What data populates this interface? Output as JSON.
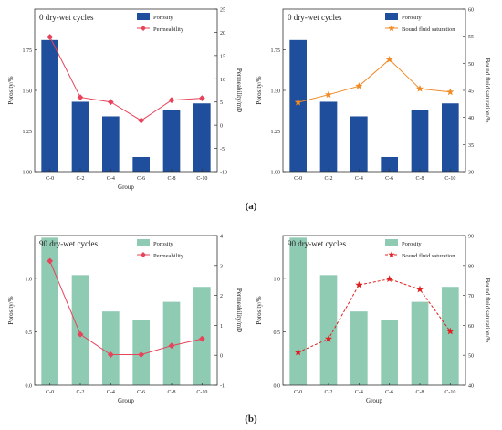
{
  "panel_labels": [
    "(a)",
    "(b)"
  ],
  "chart_data": [
    {
      "type": "bar+line",
      "title": "0 dry-wet cycles",
      "xlabel": "Group",
      "ylabel_left": "Porosity/%",
      "ylabel_right": "Permeability/mD",
      "categories": [
        "C-0",
        "C-2",
        "C-4",
        "C-6",
        "C-8",
        "C-10"
      ],
      "ylim_left": [
        1.0,
        2.0
      ],
      "yticks_left": [
        "1.00",
        "1.25",
        "1.50",
        "1.75"
      ],
      "ylim_right": [
        -10,
        25
      ],
      "yticks_right": [
        "-10",
        "-5",
        "0",
        "5",
        "10",
        "15",
        "20",
        "25"
      ],
      "bar_series": {
        "name": "Porosity",
        "values": [
          1.81,
          1.43,
          1.34,
          1.09,
          1.38,
          1.42
        ],
        "color": "#1f4e9c"
      },
      "line_series": {
        "name": "Permeability",
        "values": [
          19.0,
          6.0,
          5.0,
          1.0,
          5.4,
          5.8
        ],
        "color": "#e8435a",
        "marker": "diamond"
      },
      "legend": "top-right"
    },
    {
      "type": "bar+line",
      "title": "0 dry-wet cycles",
      "xlabel": "",
      "ylabel_left": "Porosity/%",
      "ylabel_right": "Bound fluid saturation/%",
      "categories": [
        "C-0",
        "C-2",
        "C-4",
        "C-6",
        "C-8",
        "C-10"
      ],
      "ylim_left": [
        1.0,
        2.0
      ],
      "yticks_left": [
        "1.00",
        "1.25",
        "1.50",
        "1.75"
      ],
      "ylim_right": [
        30,
        60
      ],
      "yticks_right": [
        "30",
        "35",
        "40",
        "45",
        "50",
        "55",
        "60"
      ],
      "bar_series": {
        "name": "Porosity",
        "values": [
          1.81,
          1.43,
          1.34,
          1.09,
          1.38,
          1.42
        ],
        "color": "#1f4e9c"
      },
      "line_series": {
        "name": "Bound fluid saturation",
        "values": [
          42.8,
          44.2,
          45.8,
          50.7,
          45.3,
          44.7
        ],
        "color": "#f08a24",
        "marker": "star"
      },
      "legend": "top-right"
    },
    {
      "type": "bar+line",
      "title": "90 dry-wet cycles",
      "xlabel": "Group",
      "ylabel_left": "Porosity/%",
      "ylabel_right": "Permeability/mD",
      "categories": [
        "C-0",
        "C-2",
        "C-4",
        "C-6",
        "C-8",
        "C-10"
      ],
      "ylim_left": [
        0.0,
        1.4
      ],
      "yticks_left": [
        "0.0",
        "0.5",
        "1.0"
      ],
      "ylim_right": [
        -1,
        4
      ],
      "yticks_right": [
        "-1",
        "0",
        "1",
        "2",
        "3",
        "4"
      ],
      "bar_series": {
        "name": "Porosity",
        "values": [
          1.38,
          1.03,
          0.69,
          0.61,
          0.78,
          0.92
        ],
        "color": "#8fcab3"
      },
      "line_series": {
        "name": "Permeability",
        "values": [
          3.15,
          0.7,
          0.02,
          0.02,
          0.32,
          0.55
        ],
        "color": "#e8435a",
        "marker": "diamond"
      },
      "legend": "top-right"
    },
    {
      "type": "bar+line",
      "title": "90 dry-wet cycles",
      "xlabel": "Group",
      "ylabel_left": "Porosity/%",
      "ylabel_right": "Bound fluid saturation/%",
      "categories": [
        "C-0",
        "C-2",
        "C-4",
        "C-6",
        "C-8",
        "C-10"
      ],
      "ylim_left": [
        0.0,
        1.4
      ],
      "yticks_left": [
        "0.0",
        "0.5",
        "1.0"
      ],
      "ylim_right": [
        40,
        90
      ],
      "yticks_right": [
        "40",
        "50",
        "60",
        "70",
        "80",
        "90"
      ],
      "bar_series": {
        "name": "Porosity",
        "values": [
          1.38,
          1.03,
          0.69,
          0.61,
          0.78,
          0.92
        ],
        "color": "#8fcab3"
      },
      "line_series": {
        "name": "Bound fluid saturation",
        "values": [
          51.0,
          55.5,
          73.5,
          75.5,
          72.0,
          58.0
        ],
        "color": "#e02020",
        "marker": "star",
        "dashed": true
      },
      "legend": "top-right"
    }
  ]
}
